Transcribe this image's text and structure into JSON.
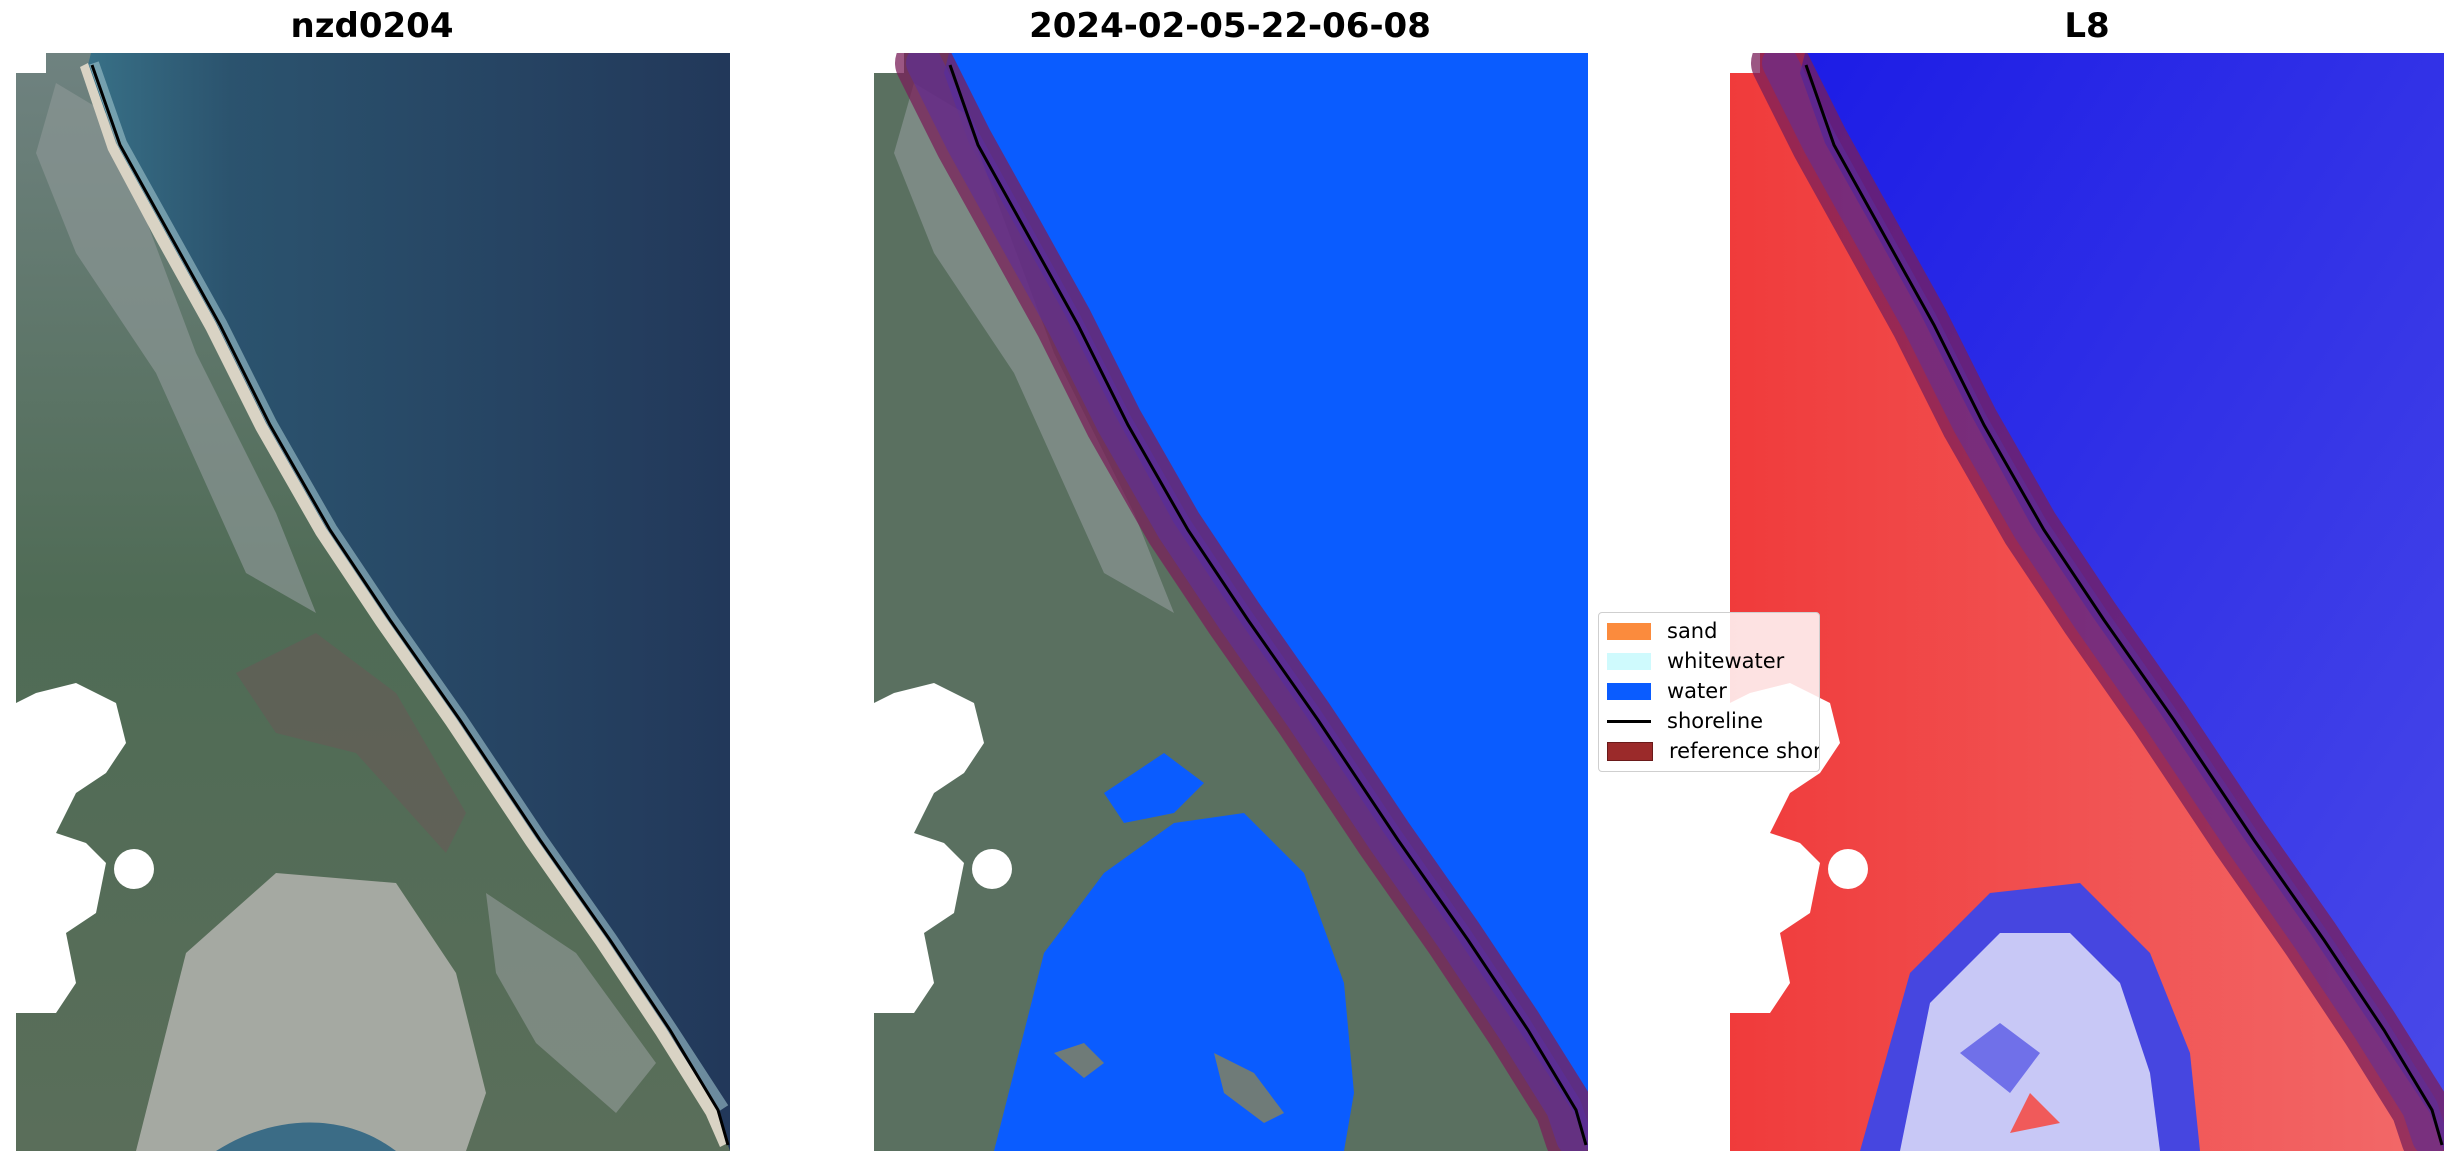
{
  "panels": {
    "rgb": {
      "title": "nzd0204"
    },
    "classified": {
      "title": "2024-02-05-22-06-08"
    },
    "index": {
      "title": "L8"
    }
  },
  "legend": {
    "items": [
      {
        "label": "sand",
        "color": "#fb8b3d"
      },
      {
        "label": "whitewater",
        "color": "#cffafd"
      },
      {
        "label": "water",
        "color": "#0a5cff"
      },
      {
        "label": "shoreline",
        "color": "#000000"
      },
      {
        "label": "reference shoreline buffer",
        "color": "#9b2a2a"
      }
    ]
  }
}
